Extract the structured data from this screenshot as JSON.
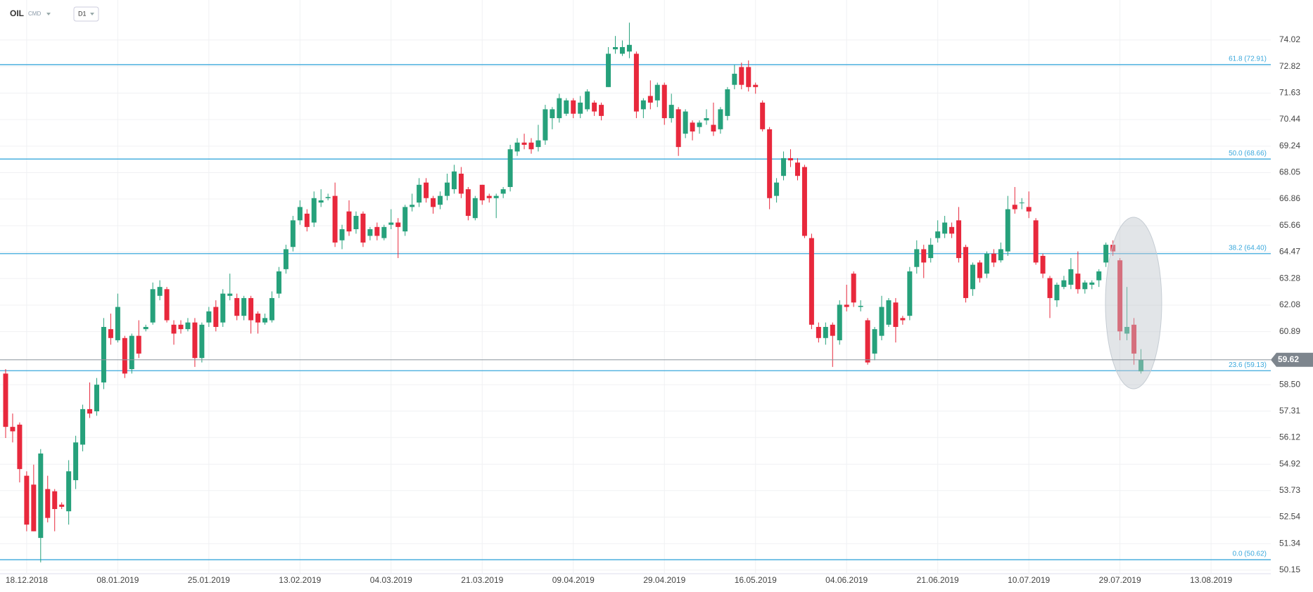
{
  "chart_data": {
    "type": "candlestick",
    "symbol": "OIL",
    "market": "CMD",
    "timeframe": "D1",
    "categories": [
      null,
      null,
      null,
      "18.12.2018",
      null,
      null,
      null,
      null,
      null,
      null,
      null,
      null,
      null,
      null,
      null,
      null,
      "08.01.2019",
      null,
      null,
      null,
      null,
      null,
      null,
      null,
      null,
      null,
      null,
      null,
      null,
      "25.01.2019",
      null,
      null,
      null,
      null,
      null,
      null,
      null,
      null,
      null,
      null,
      null,
      null,
      "13.02.2019",
      null,
      null,
      null,
      null,
      null,
      null,
      null,
      null,
      null,
      null,
      null,
      null,
      "04.03.2019",
      null,
      null,
      null,
      null,
      null,
      null,
      null,
      null,
      null,
      null,
      null,
      null,
      "21.03.2019",
      null,
      null,
      null,
      null,
      null,
      null,
      null,
      null,
      null,
      null,
      null,
      null,
      "09.04.2019",
      null,
      null,
      null,
      null,
      null,
      null,
      null,
      null,
      null,
      null,
      null,
      null,
      "29.04.2019",
      null,
      null,
      null,
      null,
      null,
      null,
      null,
      null,
      null,
      null,
      null,
      null,
      "16.05.2019",
      null,
      null,
      null,
      null,
      null,
      null,
      null,
      null,
      null,
      null,
      null,
      null,
      "04.06.2019",
      null,
      null,
      null,
      null,
      null,
      null,
      null,
      null,
      null,
      null,
      null,
      null,
      "21.06.2019",
      null,
      null,
      null,
      null,
      null,
      null,
      null,
      null,
      null,
      null,
      null,
      null,
      "10.07.2019",
      null,
      null,
      null,
      null,
      null,
      null,
      null,
      null,
      null,
      null,
      null,
      null,
      "29.07.2019",
      null,
      null,
      null,
      null,
      null,
      null,
      null,
      null,
      null,
      null,
      null,
      null,
      "13.08.2019"
    ],
    "open": [
      59.0,
      56.6,
      56.7,
      54.4,
      54.0,
      51.6,
      53.8,
      53.7,
      53.1,
      52.8,
      54.2,
      55.8,
      57.4,
      57.3,
      58.6,
      61.0,
      60.5,
      60.6,
      59.2,
      60.7,
      61.0,
      61.3,
      62.5,
      62.8,
      61.2,
      61.2,
      61.0,
      61.3,
      59.7,
      61.3,
      62.0,
      61.3,
      62.5,
      62.4,
      61.6,
      62.4,
      61.7,
      61.3,
      61.4,
      62.6,
      63.7,
      64.7,
      65.9,
      66.2,
      65.8,
      66.7,
      66.9,
      67.0,
      65.0,
      66.3,
      65.5,
      66.2,
      65.2,
      65.6,
      65.1,
      65.7,
      65.8,
      65.4,
      66.5,
      66.7,
      67.6,
      66.9,
      66.6,
      67.0,
      67.3,
      68.0,
      67.3,
      66.0,
      67.5,
      67.0,
      66.9,
      67.1,
      67.4,
      69.0,
      69.4,
      69.4,
      69.2,
      69.5,
      70.5,
      70.5,
      70.7,
      71.3,
      70.7,
      70.9,
      71.2,
      71.1,
      71.9,
      73.6,
      73.4,
      73.5,
      73.4,
      70.9,
      71.5,
      71.3,
      72.0,
      70.5,
      70.9,
      69.8,
      70.3,
      70.1,
      70.4,
      70.2,
      70.0,
      70.6,
      72.0,
      72.8,
      72.8,
      72.0,
      71.2,
      70.0,
      67.0,
      67.9,
      68.7,
      68.5,
      68.3,
      65.1,
      61.1,
      60.6,
      61.2,
      60.5,
      62.1,
      63.5,
      62.0,
      61.4,
      59.9,
      60.7,
      61.2,
      62.2,
      61.5,
      61.6,
      63.8,
      64.6,
      64.2,
      65.1,
      65.3,
      65.6,
      65.9,
      64.7,
      62.8,
      64.0,
      63.5,
      64.4,
      64.1,
      64.5,
      66.6,
      66.7,
      66.5,
      65.9,
      64.3,
      63.3,
      62.3,
      62.9,
      63.0,
      63.5,
      62.8,
      63.0,
      63.2,
      64.0,
      64.8,
      64.1,
      60.8,
      61.2,
      59.1,
      null,
      null,
      null,
      null,
      null,
      null,
      null,
      null,
      null,
      null
    ],
    "high": [
      59.2,
      57.2,
      56.8,
      54.6,
      54.9,
      55.6,
      54.4,
      53.8,
      53.2,
      55.1,
      56.2,
      57.6,
      58.6,
      58.8,
      61.5,
      61.7,
      62.6,
      60.7,
      60.8,
      61.4,
      61.2,
      63.1,
      63.2,
      62.9,
      61.4,
      61.4,
      61.5,
      61.5,
      61.3,
      62.0,
      62.3,
      62.8,
      63.5,
      62.6,
      62.5,
      62.5,
      61.8,
      61.7,
      62.7,
      63.8,
      64.8,
      66.1,
      66.8,
      66.4,
      67.2,
      67.3,
      67.1,
      67.6,
      65.7,
      66.8,
      66.3,
      66.3,
      65.6,
      65.8,
      65.7,
      66.4,
      66.0,
      66.6,
      67.1,
      67.8,
      67.8,
      67.0,
      67.2,
      68.0,
      68.4,
      68.3,
      67.4,
      67.0,
      67.5,
      67.1,
      67.1,
      67.4,
      69.3,
      69.6,
      69.8,
      69.6,
      70.2,
      71.1,
      71.0,
      71.6,
      71.4,
      71.4,
      71.5,
      71.8,
      71.3,
      71.2,
      73.7,
      74.2,
      74.0,
      74.8,
      73.5,
      71.4,
      72.2,
      72.1,
      72.1,
      71.6,
      71.0,
      70.9,
      70.4,
      70.4,
      70.9,
      71.2,
      71.0,
      71.9,
      72.9,
      73.0,
      73.1,
      72.1,
      71.3,
      70.1,
      67.8,
      69.0,
      69.1,
      68.7,
      68.4,
      65.3,
      61.3,
      61.3,
      61.3,
      62.3,
      63.0,
      63.6,
      62.3,
      61.5,
      61.1,
      62.5,
      62.4,
      62.4,
      61.6,
      63.8,
      65.0,
      64.8,
      65.1,
      65.9,
      66.1,
      65.8,
      66.5,
      64.8,
      64.0,
      64.1,
      64.5,
      64.6,
      64.9,
      67.0,
      67.4,
      66.9,
      67.2,
      66.0,
      64.4,
      63.4,
      63.1,
      63.4,
      64.2,
      64.5,
      63.2,
      63.2,
      63.7,
      64.9,
      65.0,
      64.2,
      62.9,
      61.5,
      60.1,
      null,
      null,
      null,
      null,
      null,
      null,
      null,
      null,
      null,
      null
    ],
    "low": [
      56.1,
      55.9,
      54.1,
      51.9,
      51.9,
      50.5,
      52.3,
      51.9,
      52.9,
      52.2,
      53.8,
      55.5,
      57.0,
      57.1,
      58.3,
      60.3,
      60.4,
      58.8,
      59.0,
      59.7,
      60.9,
      61.2,
      62.3,
      61.3,
      60.3,
      60.8,
      60.9,
      59.3,
      59.5,
      61.1,
      60.9,
      61.1,
      62.3,
      61.4,
      61.4,
      60.8,
      60.8,
      61.2,
      61.3,
      62.4,
      63.5,
      64.5,
      65.7,
      65.4,
      65.6,
      66.5,
      66.8,
      64.7,
      64.6,
      65.2,
      65.3,
      64.7,
      65.0,
      65.0,
      65.0,
      65.5,
      64.2,
      65.2,
      66.3,
      66.5,
      66.7,
      66.2,
      66.4,
      66.8,
      67.1,
      66.9,
      65.9,
      65.9,
      66.6,
      66.7,
      66.0,
      66.9,
      67.2,
      68.8,
      69.1,
      68.9,
      69.0,
      69.3,
      70.0,
      70.3,
      70.6,
      70.5,
      70.5,
      70.8,
      70.6,
      70.4,
      71.9,
      73.4,
      73.3,
      73.2,
      70.5,
      70.5,
      70.9,
      71.0,
      70.2,
      70.3,
      68.8,
      69.6,
      69.5,
      69.8,
      70.2,
      69.7,
      69.8,
      70.4,
      71.8,
      71.8,
      71.7,
      71.6,
      69.9,
      66.4,
      66.7,
      67.7,
      68.3,
      67.7,
      65.1,
      61.0,
      60.4,
      60.3,
      59.3,
      60.3,
      61.8,
      62.0,
      61.8,
      59.4,
      59.6,
      60.5,
      61.1,
      60.4,
      61.2,
      61.4,
      63.5,
      63.3,
      64.0,
      64.9,
      65.1,
      65.1,
      64.0,
      62.2,
      62.5,
      63.1,
      63.3,
      63.8,
      64.0,
      64.3,
      66.2,
      66.4,
      66.0,
      63.9,
      63.3,
      61.5,
      62.0,
      62.8,
      62.8,
      62.6,
      62.6,
      62.8,
      62.9,
      63.8,
      64.3,
      60.5,
      60.5,
      59.4,
      59.0,
      null,
      null,
      null,
      null,
      null,
      null,
      null,
      null,
      null,
      null
    ],
    "close": [
      56.6,
      56.4,
      54.7,
      52.2,
      51.9,
      55.4,
      52.5,
      52.9,
      53.0,
      54.6,
      55.9,
      57.4,
      57.2,
      58.5,
      61.1,
      60.6,
      62.0,
      59.0,
      60.7,
      59.9,
      61.1,
      62.8,
      62.9,
      61.4,
      60.8,
      61.0,
      61.3,
      59.7,
      61.2,
      61.8,
      61.1,
      62.6,
      62.6,
      61.6,
      62.4,
      61.4,
      61.3,
      61.5,
      62.4,
      63.6,
      64.6,
      65.9,
      66.5,
      65.6,
      66.9,
      66.8,
      66.95,
      64.9,
      65.5,
      65.4,
      66.1,
      64.9,
      65.5,
      65.2,
      65.6,
      65.8,
      65.6,
      66.5,
      66.6,
      67.5,
      66.9,
      66.5,
      67.0,
      67.6,
      68.1,
      67.1,
      66.1,
      66.9,
      66.8,
      66.9,
      67.0,
      67.3,
      69.1,
      69.4,
      69.3,
      69.1,
      69.5,
      70.9,
      70.9,
      71.4,
      71.3,
      70.7,
      71.2,
      71.7,
      70.8,
      70.6,
      73.4,
      73.7,
      73.7,
      73.8,
      70.8,
      71.3,
      71.2,
      72.0,
      70.5,
      71.1,
      69.2,
      70.8,
      69.9,
      70.3,
      70.5,
      69.9,
      70.9,
      71.8,
      72.5,
      72.0,
      71.9,
      71.9,
      70.0,
      66.9,
      67.6,
      68.7,
      68.6,
      67.9,
      65.2,
      61.2,
      60.6,
      61.1,
      60.7,
      62.1,
      62.0,
      62.2,
      62.05,
      59.5,
      61.0,
      62.0,
      62.3,
      61.1,
      61.4,
      63.6,
      64.6,
      64.0,
      64.8,
      65.4,
      65.8,
      65.3,
      64.2,
      62.4,
      63.9,
      63.3,
      64.4,
      64.0,
      64.6,
      66.4,
      66.4,
      66.7,
      66.3,
      64.0,
      63.5,
      62.4,
      63.0,
      63.2,
      63.7,
      62.8,
      63.1,
      63.1,
      63.6,
      64.8,
      64.5,
      60.9,
      61.1,
      59.9,
      59.62,
      null,
      null,
      null,
      null,
      null,
      null,
      null,
      null,
      null,
      null
    ],
    "up_color": "#26a17b",
    "down_color": "#e8283c",
    "ylim": [
      50.02,
      75.82
    ],
    "yticks": [
      74.02,
      72.82,
      71.63,
      70.44,
      69.24,
      68.05,
      66.86,
      65.66,
      64.47,
      63.28,
      62.08,
      60.89,
      {
        "value": 58.5,
        "label": "58.50"
      },
      57.31,
      56.12,
      54.92,
      53.73,
      52.54,
      51.34,
      50.15
    ],
    "grid": true,
    "lines": [
      {
        "value": 72.91,
        "label": "61.8 (72.91)"
      },
      {
        "value": 68.66,
        "label": "50.0 (68.66)"
      },
      {
        "value": 64.4,
        "label": "38.2 (64.40)"
      },
      {
        "value": 59.13,
        "label": "23.6 (59.13)"
      },
      {
        "value": 50.62,
        "label": "0.0 (50.62)"
      }
    ],
    "line_color": "#3aa8dc",
    "last_price": 59.62
  }
}
